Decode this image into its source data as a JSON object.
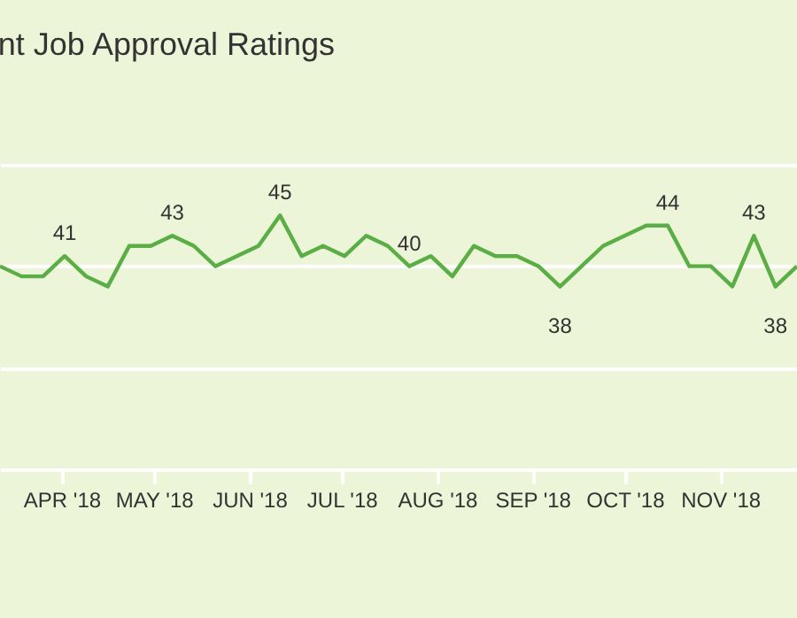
{
  "chart_data": {
    "type": "line",
    "title": "nt Job Approval Ratings",
    "x": [
      "2018-03-12",
      "2018-03-19",
      "2018-03-26",
      "2018-04-02",
      "2018-04-09",
      "2018-04-16",
      "2018-04-23",
      "2018-04-30",
      "2018-05-07",
      "2018-05-14",
      "2018-05-21",
      "2018-05-28",
      "2018-06-04",
      "2018-06-11",
      "2018-06-18",
      "2018-06-25",
      "2018-07-02",
      "2018-07-09",
      "2018-07-16",
      "2018-07-23",
      "2018-07-30",
      "2018-08-06",
      "2018-08-13",
      "2018-08-20",
      "2018-08-27",
      "2018-09-03",
      "2018-09-10",
      "2018-09-17",
      "2018-09-24",
      "2018-10-01",
      "2018-10-08",
      "2018-10-15",
      "2018-10-22",
      "2018-10-29",
      "2018-11-05",
      "2018-11-12",
      "2018-11-19",
      "2018-11-26"
    ],
    "series": [
      {
        "color": "#5aae45",
        "values": [
          40,
          39,
          39,
          41,
          39,
          38,
          42,
          42,
          43,
          42,
          40,
          41,
          42,
          45,
          41,
          42,
          41,
          43,
          42,
          40,
          41,
          39,
          42,
          41,
          41,
          40,
          38,
          40,
          42,
          43,
          44,
          44,
          40,
          40,
          38,
          43,
          38,
          40
        ],
        "value_labels": [
          null,
          null,
          null,
          "41",
          null,
          null,
          null,
          null,
          "43",
          null,
          null,
          null,
          null,
          "45",
          null,
          null,
          null,
          null,
          null,
          "40",
          null,
          null,
          null,
          null,
          null,
          null,
          "38",
          null,
          null,
          null,
          null,
          "44",
          null,
          null,
          null,
          "43",
          "38",
          null
        ]
      }
    ],
    "xlim": [
      "2018-03-12",
      "2018-11-26"
    ],
    "xticks": [
      {
        "value": "2018-04-01",
        "label": "APR '18"
      },
      {
        "value": "2018-05-01",
        "label": "MAY '18"
      },
      {
        "value": "2018-06-01",
        "label": "JUN '18"
      },
      {
        "value": "2018-07-01",
        "label": "JUL '18"
      },
      {
        "value": "2018-08-01",
        "label": "AUG '18"
      },
      {
        "value": "2018-09-01",
        "label": "SEP '18"
      },
      {
        "value": "2018-10-01",
        "label": "OCT '18"
      },
      {
        "value": "2018-11-01",
        "label": "NOV '18"
      }
    ],
    "ylim": [
      20,
      50
    ],
    "yticks": [
      {
        "value": 20,
        "label": null
      },
      {
        "value": 30,
        "label": null
      },
      {
        "value": 40,
        "label": null
      },
      {
        "value": 50,
        "label": null
      }
    ],
    "grid": "y",
    "tick_labels": "x",
    "marker": "none",
    "line_style": "solid"
  }
}
